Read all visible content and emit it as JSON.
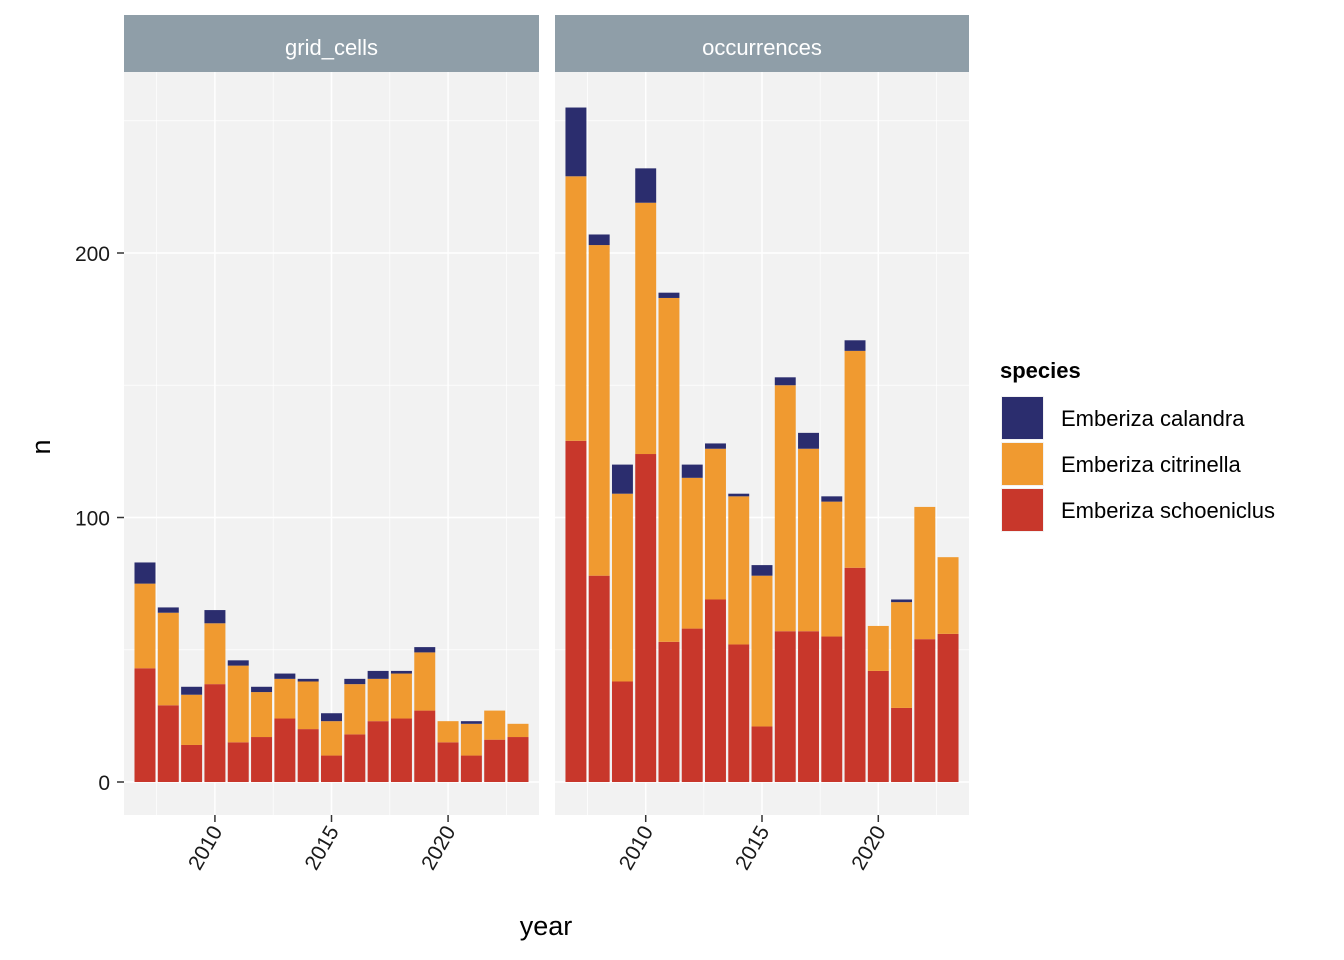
{
  "chart_data": {
    "type": "bar",
    "stacked": true,
    "xlabel": "year",
    "ylabel": "n",
    "x": [
      2007,
      2008,
      2009,
      2010,
      2011,
      2012,
      2013,
      2014,
      2015,
      2016,
      2017,
      2018,
      2019,
      2020,
      2021,
      2022,
      2023
    ],
    "x_ticks": [
      2010,
      2015,
      2020
    ],
    "x_tick_labels": [
      "2010",
      "2015",
      "2020"
    ],
    "xlim": [
      2006.1,
      2023.9
    ],
    "y_ticks": [
      0,
      100,
      200
    ],
    "y_tick_labels": [
      "0",
      "100",
      "200"
    ],
    "ylim": [
      -12,
      268
    ],
    "grid": true,
    "legend": {
      "title": "species",
      "position": "right"
    },
    "series_order_bottom_to_top": [
      "Emberiza schoeniclus",
      "Emberiza citrinella",
      "Emberiza calandra"
    ],
    "series_colors": {
      "Emberiza calandra": "#2b2d6e",
      "Emberiza citrinella": "#f09a30",
      "Emberiza schoeniclus": "#c8372b"
    },
    "panels": [
      {
        "strip": "grid_cells",
        "series": [
          {
            "name": "Emberiza schoeniclus",
            "values": [
              43,
              29,
              14,
              37,
              15,
              17,
              24,
              20,
              10,
              18,
              23,
              24,
              27,
              15,
              10,
              16,
              17
            ]
          },
          {
            "name": "Emberiza citrinella",
            "values": [
              32,
              35,
              19,
              23,
              29,
              17,
              15,
              18,
              13,
              19,
              16,
              17,
              22,
              8,
              12,
              11,
              5
            ]
          },
          {
            "name": "Emberiza calandra",
            "values": [
              8,
              2,
              3,
              5,
              2,
              2,
              2,
              1,
              3,
              2,
              3,
              1,
              2,
              0,
              1,
              0,
              0
            ]
          }
        ]
      },
      {
        "strip": "occurrences",
        "series": [
          {
            "name": "Emberiza schoeniclus",
            "values": [
              129,
              78,
              38,
              124,
              53,
              58,
              69,
              52,
              21,
              57,
              57,
              55,
              81,
              42,
              28,
              54,
              56
            ]
          },
          {
            "name": "Emberiza citrinella",
            "values": [
              100,
              125,
              71,
              95,
              130,
              57,
              57,
              56,
              57,
              93,
              69,
              51,
              82,
              17,
              40,
              50,
              29
            ]
          },
          {
            "name": "Emberiza calandra",
            "values": [
              26,
              4,
              11,
              13,
              2,
              5,
              2,
              1,
              4,
              3,
              6,
              2,
              4,
              0,
              1,
              0,
              0
            ]
          }
        ]
      }
    ]
  }
}
